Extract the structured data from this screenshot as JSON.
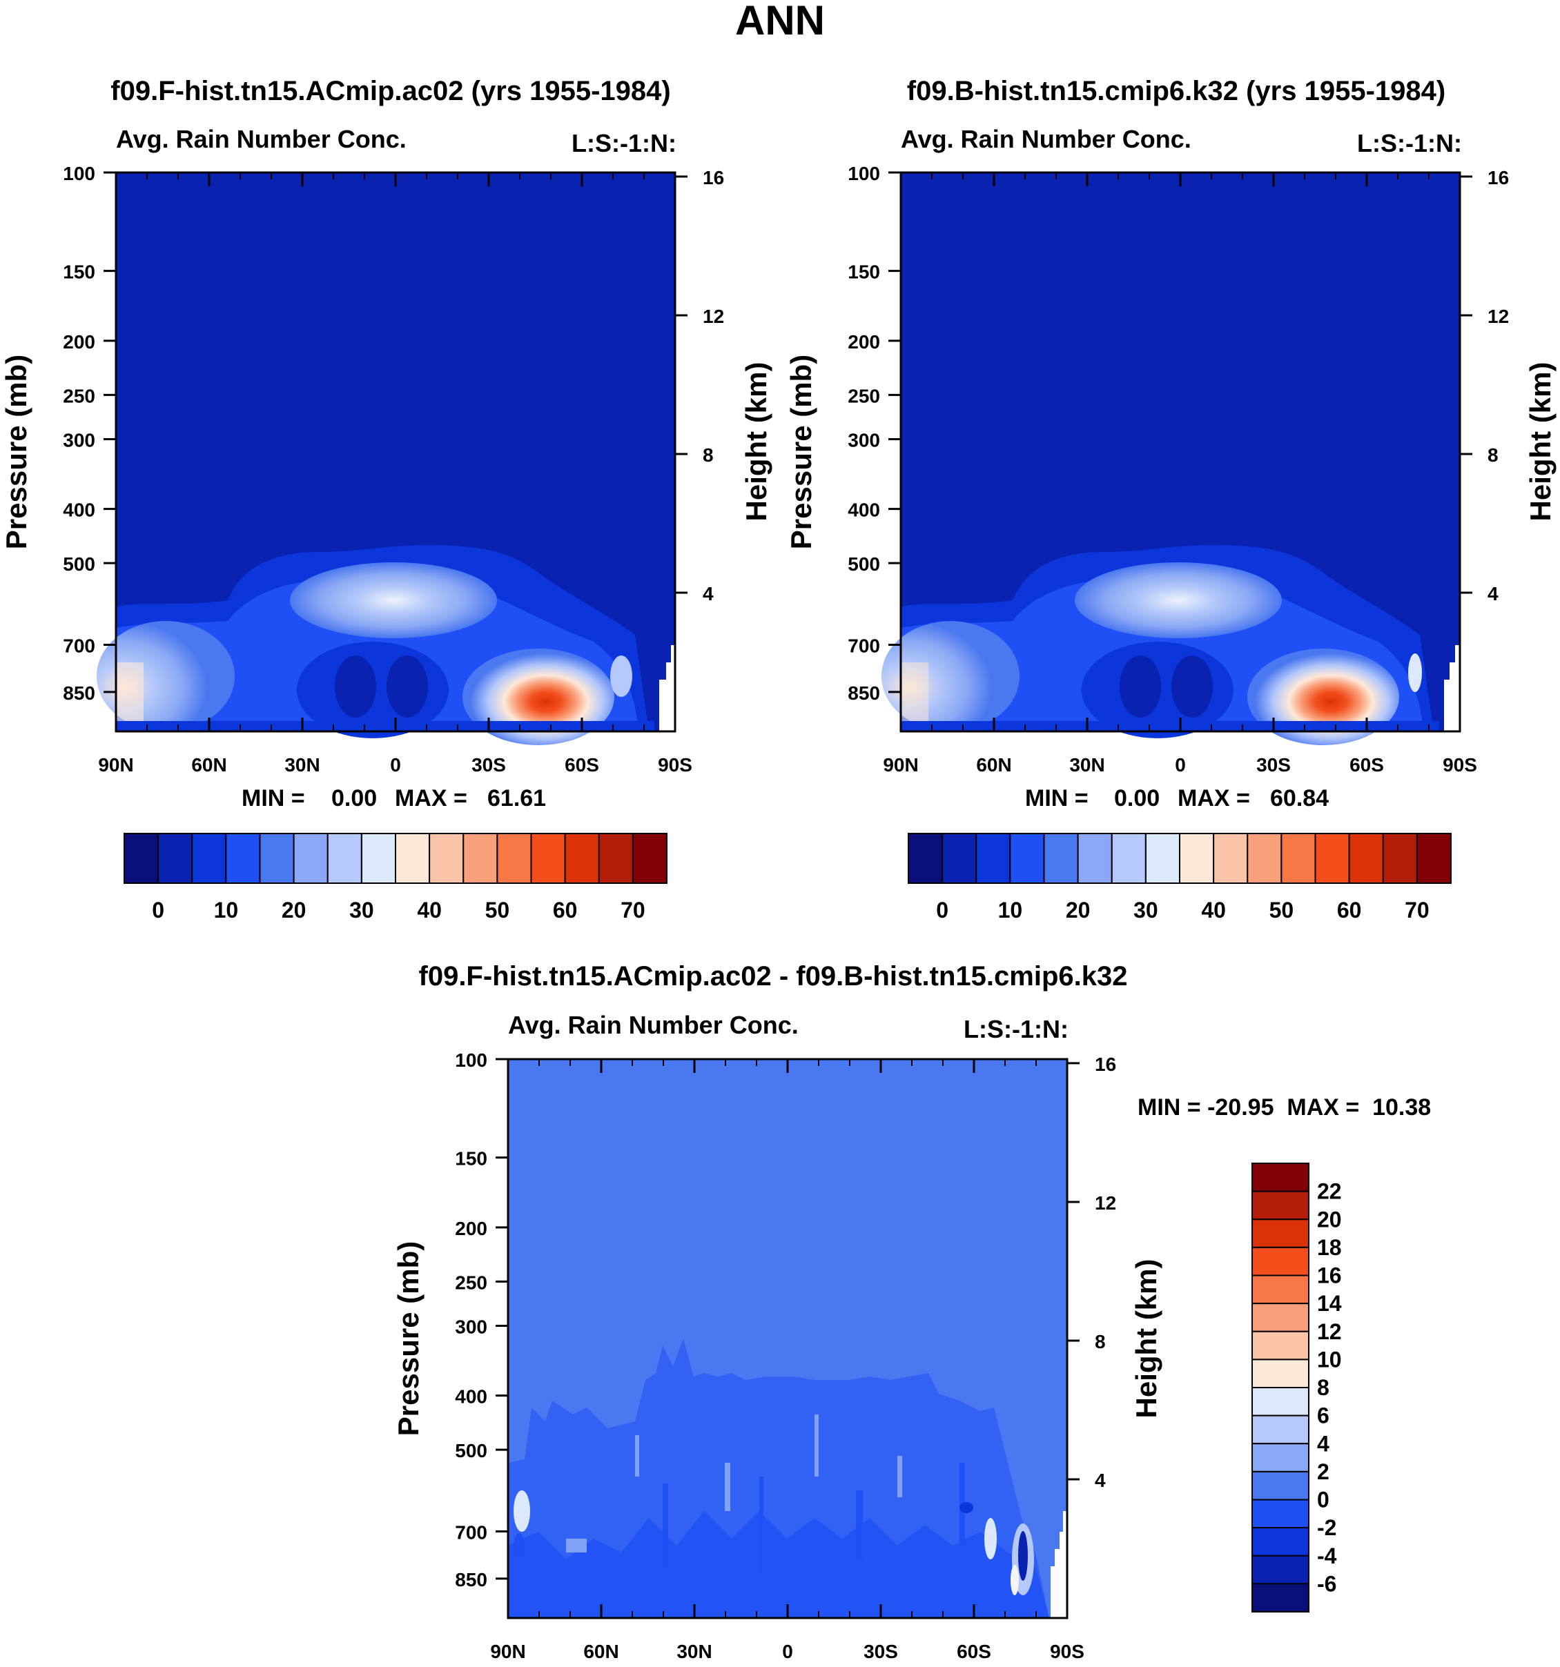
{
  "figure": {
    "title": "ANN"
  },
  "colors": {
    "abs_palette": [
      "#0a0e78",
      "#0a22b0",
      "#0a36dc",
      "#1e50f5",
      "#4a78f0",
      "#8aa8f5",
      "#b4c8fa",
      "#dce8fc",
      "#fde8d8",
      "#fcc4a6",
      "#f9a07a",
      "#f77846",
      "#f34e1c",
      "#dc3208",
      "#b41e08",
      "#820008"
    ],
    "diff_palette": [
      "#0a0e78",
      "#0a22b0",
      "#0a36dc",
      "#1e50f5",
      "#4a78f0",
      "#8aa8f5",
      "#b4c8fa",
      "#dce8fc",
      "#fde8d8",
      "#fcc4a6",
      "#f9a07a",
      "#f77846",
      "#f34e1c",
      "#dc3208",
      "#b41e08",
      "#820008"
    ]
  },
  "chart_data": [
    {
      "type": "heatmap",
      "title": "f09.F-hist.tn15.ACmip.ac02 (yrs 1955-1984)",
      "subtitle_left": "Avg. Rain Number Conc.",
      "subtitle_right": "L:S:-1:N:",
      "ylabel": "Pressure (mb)",
      "ylabel_right": "Height (km)",
      "xticks": [
        "90N",
        "60N",
        "30N",
        "0",
        "30S",
        "60S",
        "90S"
      ],
      "yticks": [
        "100",
        "150",
        "200",
        "250",
        "300",
        "400",
        "500",
        "700",
        "850"
      ],
      "yticks_right": [
        "16",
        "12",
        "8",
        "4"
      ],
      "stats": {
        "min_label": "MIN =",
        "min": "0.00",
        "max_label": "MAX =",
        "max": "61.61"
      },
      "colorbar": {
        "orientation": "horizontal",
        "labels": [
          "0",
          "10",
          "20",
          "30",
          "40",
          "50",
          "60",
          "70"
        ]
      },
      "ylim": [
        100,
        1000
      ],
      "features": [
        {
          "lat": 0,
          "p": 590,
          "value": 32
        },
        {
          "lat": -45,
          "p": 850,
          "value": 61.61
        },
        {
          "lat": 88,
          "p": 840,
          "value": 40
        }
      ]
    },
    {
      "type": "heatmap",
      "title": "f09.B-hist.tn15.cmip6.k32 (yrs 1955-1984)",
      "subtitle_left": "Avg. Rain Number Conc.",
      "subtitle_right": "L:S:-1:N:",
      "ylabel": "Pressure (mb)",
      "ylabel_right": "Height (km)",
      "xticks": [
        "90N",
        "60N",
        "30N",
        "0",
        "30S",
        "60S",
        "90S"
      ],
      "yticks": [
        "100",
        "150",
        "200",
        "250",
        "300",
        "400",
        "500",
        "700",
        "850"
      ],
      "yticks_right": [
        "16",
        "12",
        "8",
        "4"
      ],
      "stats": {
        "min_label": "MIN =",
        "min": "0.00",
        "max_label": "MAX =",
        "max": "60.84"
      },
      "colorbar": {
        "orientation": "horizontal",
        "labels": [
          "0",
          "10",
          "20",
          "30",
          "40",
          "50",
          "60",
          "70"
        ]
      },
      "ylim": [
        100,
        1000
      ],
      "features": [
        {
          "lat": 0,
          "p": 590,
          "value": 32
        },
        {
          "lat": -45,
          "p": 850,
          "value": 60.84
        },
        {
          "lat": 88,
          "p": 840,
          "value": 40
        }
      ]
    },
    {
      "type": "heatmap",
      "title": "f09.F-hist.tn15.ACmip.ac02 - f09.B-hist.tn15.cmip6.k32",
      "subtitle_left": "Avg. Rain Number Conc.",
      "subtitle_right": "L:S:-1:N:",
      "ylabel": "Pressure (mb)",
      "ylabel_right": "Height (km)",
      "xticks": [
        "90N",
        "60N",
        "30N",
        "0",
        "30S",
        "60S",
        "90S"
      ],
      "yticks": [
        "100",
        "150",
        "200",
        "250",
        "300",
        "400",
        "500",
        "700",
        "850"
      ],
      "yticks_right": [
        "16",
        "12",
        "8",
        "4"
      ],
      "stats": {
        "text": "MIN = -20.95  MAX =  10.38",
        "min": "-20.95",
        "max": "10.38"
      },
      "colorbar": {
        "orientation": "vertical",
        "labels": [
          "22",
          "20",
          "18",
          "16",
          "14",
          "12",
          "10",
          "8",
          "6",
          "4",
          "2",
          "0",
          "-2",
          "-4",
          "-6"
        ]
      },
      "ylim": [
        100,
        1000
      ]
    }
  ]
}
